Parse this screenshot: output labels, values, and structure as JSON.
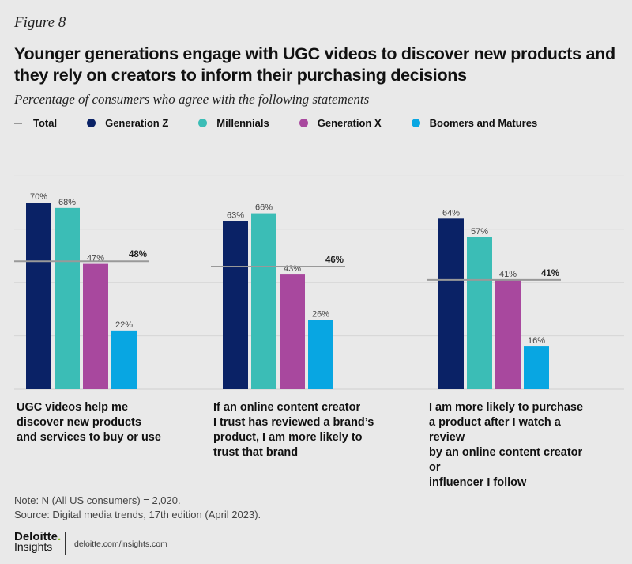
{
  "figure_label": "Figure 8",
  "chart_data": {
    "type": "bar",
    "title": "Younger generations engage with  UGC videos to discover new products and they rely on creators to inform their purchasing decisions",
    "subtitle": "Percentage of consumers who agree with the following statements",
    "categories": [
      "UGC videos help me discover new products and services to buy or use",
      "If an online content creator I trust has reviewed a brand’s product, I am more likely to trust that brand",
      "I am more likely to purchase a product after I watch a review by an online content creator or influencer I follow"
    ],
    "category_lines": [
      [
        "UGC videos help me",
        "discover new products",
        "and services to buy or use"
      ],
      [
        "If an online content creator",
        "I trust has reviewed a brand’s",
        "product, I am more likely to",
        "trust that brand"
      ],
      [
        "I am more likely to purchase",
        "a product after I watch a review",
        "by an online content creator or",
        "influencer I follow"
      ]
    ],
    "series": [
      {
        "name": "Generation Z",
        "color": "#0a2266",
        "values": [
          70,
          63,
          64
        ]
      },
      {
        "name": "Millennials",
        "color": "#3bbdb6",
        "values": [
          68,
          66,
          57
        ]
      },
      {
        "name": "Generation X",
        "color": "#a8489e",
        "values": [
          47,
          43,
          41
        ]
      },
      {
        "name": "Boomers and Matures",
        "color": "#08a6e2",
        "values": [
          22,
          26,
          16
        ]
      }
    ],
    "total": {
      "name": "Total",
      "color": "#999999",
      "values": [
        48,
        46,
        41
      ]
    },
    "value_format": "%",
    "ylim": [
      0,
      100
    ],
    "grid": true,
    "legend": "top"
  },
  "note": "Note: N (All US consumers) = 2,020.",
  "source": "Source: Digital media trends, 17th edition (April 2023).",
  "logo": {
    "brand": "Deloitte",
    "sub": "Insights"
  },
  "url": "deloitte.com/insights.com"
}
